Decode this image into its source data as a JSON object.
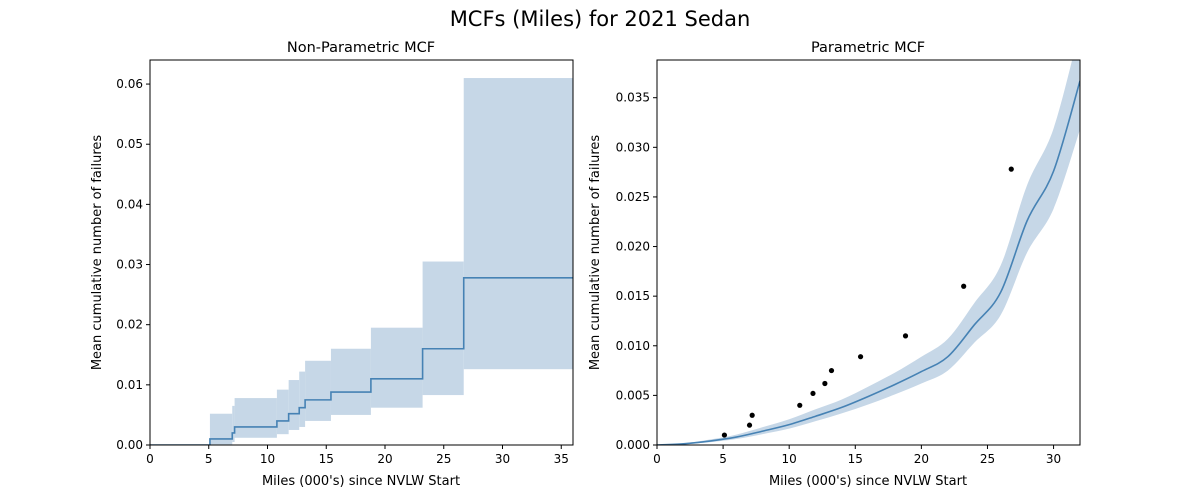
{
  "suptitle": "MCFs (Miles) for 2021 Sedan",
  "colors": {
    "line": "#4682b4",
    "band": "#c6d7e7",
    "points": "#000000"
  },
  "chart_data": [
    {
      "type": "line",
      "step": true,
      "title": "Non-Parametric MCF",
      "xlabel": "Miles (000's) since NVLW Start",
      "ylabel": "Mean cumulative number of failures",
      "xlim": [
        0,
        36
      ],
      "ylim": [
        0,
        0.064
      ],
      "xticks": [
        0,
        5,
        10,
        15,
        20,
        25,
        30,
        35
      ],
      "xtick_labels": [
        "0",
        "5",
        "10",
        "15",
        "20",
        "25",
        "30",
        "35"
      ],
      "yticks": [
        0,
        0.01,
        0.02,
        0.03,
        0.04,
        0.05,
        0.06
      ],
      "ytick_labels": [
        "0.00",
        "0.01",
        "0.02",
        "0.03",
        "0.04",
        "0.05",
        "0.06"
      ],
      "grid": false,
      "steps": [
        {
          "x": 0,
          "y": 0,
          "lower": 0,
          "upper": 0
        },
        {
          "x": 5.1,
          "y": 0.001,
          "lower": 0.0001,
          "upper": 0.0052
        },
        {
          "x": 7.0,
          "y": 0.002,
          "lower": 0.0005,
          "upper": 0.0065
        },
        {
          "x": 7.2,
          "y": 0.003,
          "lower": 0.0012,
          "upper": 0.0078
        },
        {
          "x": 10.8,
          "y": 0.004,
          "lower": 0.0018,
          "upper": 0.0092
        },
        {
          "x": 11.8,
          "y": 0.0052,
          "lower": 0.0025,
          "upper": 0.0108
        },
        {
          "x": 12.7,
          "y": 0.0062,
          "lower": 0.003,
          "upper": 0.0122
        },
        {
          "x": 13.2,
          "y": 0.0075,
          "lower": 0.004,
          "upper": 0.014
        },
        {
          "x": 15.4,
          "y": 0.0088,
          "lower": 0.005,
          "upper": 0.016
        },
        {
          "x": 18.8,
          "y": 0.011,
          "lower": 0.0062,
          "upper": 0.0195
        },
        {
          "x": 23.2,
          "y": 0.016,
          "lower": 0.0083,
          "upper": 0.0305
        },
        {
          "x": 26.7,
          "y": 0.0278,
          "lower": 0.0126,
          "upper": 0.061
        }
      ],
      "x_end": 36
    },
    {
      "type": "line",
      "title": "Parametric MCF",
      "xlabel": "Miles (000's) since NVLW Start",
      "ylabel": "Mean cumulative number of failures",
      "xlim": [
        0,
        32
      ],
      "ylim": [
        0,
        0.0388
      ],
      "xticks": [
        0,
        5,
        10,
        15,
        20,
        25,
        30
      ],
      "xtick_labels": [
        "0",
        "5",
        "10",
        "15",
        "20",
        "25",
        "30"
      ],
      "yticks": [
        0,
        0.005,
        0.01,
        0.015,
        0.02,
        0.025,
        0.03,
        0.035
      ],
      "ytick_labels": [
        "0.000",
        "0.005",
        "0.010",
        "0.015",
        "0.020",
        "0.025",
        "0.030",
        "0.035"
      ],
      "grid": false,
      "fit": {
        "x": [
          0,
          2,
          4,
          6,
          8,
          10,
          12,
          14,
          16,
          18,
          20,
          22,
          24,
          26,
          28,
          30,
          32
        ],
        "y": [
          0,
          0.00012,
          0.0004,
          0.0008,
          0.0014,
          0.00205,
          0.0029,
          0.0038,
          0.0049,
          0.0061,
          0.0074,
          0.0089,
          0.0121,
          0.0154,
          0.0226,
          0.0276,
          0.0367
        ],
        "lower": [
          0,
          8e-05,
          0.00028,
          0.0006,
          0.0011,
          0.00165,
          0.0024,
          0.0032,
          0.0041,
          0.0051,
          0.0062,
          0.0075,
          0.0103,
          0.0131,
          0.0194,
          0.0238,
          0.0318
        ],
        "upper": [
          0,
          0.00017,
          0.00055,
          0.00105,
          0.0018,
          0.0026,
          0.0036,
          0.0046,
          0.0059,
          0.0073,
          0.0089,
          0.0107,
          0.0143,
          0.0181,
          0.0262,
          0.0319,
          0.042
        ]
      },
      "points": [
        {
          "x": 5.1,
          "y": 0.001
        },
        {
          "x": 7.0,
          "y": 0.002
        },
        {
          "x": 7.2,
          "y": 0.003
        },
        {
          "x": 10.8,
          "y": 0.004
        },
        {
          "x": 11.8,
          "y": 0.0052
        },
        {
          "x": 12.7,
          "y": 0.0062
        },
        {
          "x": 13.2,
          "y": 0.0075
        },
        {
          "x": 15.4,
          "y": 0.0089
        },
        {
          "x": 18.8,
          "y": 0.011
        },
        {
          "x": 23.2,
          "y": 0.016
        },
        {
          "x": 26.8,
          "y": 0.0278
        }
      ]
    }
  ]
}
